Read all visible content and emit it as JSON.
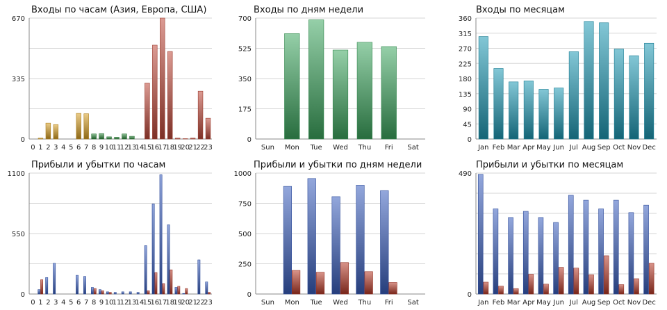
{
  "chart_data": [
    {
      "type": "bar",
      "title": "Входы по часам (Азия, Европа, США)",
      "categories": [
        "0",
        "1",
        "2",
        "3",
        "4",
        "5",
        "6",
        "7",
        "8",
        "9",
        "10",
        "11",
        "12",
        "13",
        "14",
        "15",
        "16",
        "17",
        "18",
        "19",
        "20",
        "21",
        "22",
        "23"
      ],
      "series": [
        {
          "values": [
            0,
            5,
            88,
            80,
            0,
            0,
            142,
            140,
            28,
            30,
            12,
            10,
            28,
            15,
            0,
            310,
            520,
            670,
            485,
            5,
            2,
            5,
            265,
            115
          ]
        }
      ],
      "bar_colors": [
        "#d9a024",
        "#d9a024",
        "#d9a024",
        "#d9a024",
        "#d9a024",
        "#d9a024",
        "#d9a024",
        "#d9a024",
        "#2e8b3c",
        "#2e8b3c",
        "#2e8b3c",
        "#2e8b3c",
        "#2e8b3c",
        "#2e8b3c",
        "#c04a3a",
        "#c04a3a",
        "#c04a3a",
        "#c04a3a",
        "#c04a3a",
        "#c04a3a",
        "#c04a3a",
        "#c04a3a",
        "#c04a3a",
        "#c04a3a"
      ],
      "ylim": [
        0,
        670
      ],
      "yticks": [
        0,
        335,
        670
      ],
      "grid": true
    },
    {
      "type": "bar",
      "title": "Входы по дням недели",
      "categories": [
        "Sun",
        "Mon",
        "Tue",
        "Wed",
        "Thu",
        "Fri",
        "Sat"
      ],
      "series": [
        {
          "values": [
            0,
            610,
            690,
            515,
            560,
            535,
            0
          ],
          "color": "#3ea860"
        }
      ],
      "ylim": [
        0,
        700
      ],
      "yticks": [
        0,
        175,
        350,
        525,
        700
      ],
      "grid": true
    },
    {
      "type": "bar",
      "title": "Входы по месяцам",
      "categories": [
        "Jan",
        "Feb",
        "Mar",
        "Apr",
        "May",
        "Jun",
        "Jul",
        "Aug",
        "Sep",
        "Oct",
        "Nov",
        "Dec"
      ],
      "series": [
        {
          "values": [
            305,
            210,
            170,
            173,
            148,
            152,
            260,
            350,
            346,
            268,
            248,
            285
          ],
          "color": "#1e9ab5"
        }
      ],
      "ylim": [
        0,
        360
      ],
      "yticks": [
        0,
        45,
        90,
        135,
        180,
        225,
        270,
        315,
        360
      ],
      "grid": true
    },
    {
      "type": "bar",
      "title": "Прибыли и убытки по часам",
      "categories": [
        "0",
        "1",
        "2",
        "3",
        "4",
        "5",
        "6",
        "7",
        "8",
        "9",
        "10",
        "11",
        "12",
        "13",
        "14",
        "15",
        "16",
        "17",
        "18",
        "19",
        "20",
        "21",
        "22",
        "23"
      ],
      "series": [
        {
          "values": [
            0,
            40,
            150,
            280,
            0,
            0,
            170,
            160,
            60,
            40,
            20,
            15,
            20,
            20,
            15,
            440,
            820,
            1085,
            630,
            60,
            5,
            0,
            310,
            110
          ],
          "color": "#3a5fbf"
        },
        {
          "values": [
            0,
            130,
            0,
            0,
            0,
            0,
            0,
            0,
            50,
            30,
            15,
            0,
            0,
            0,
            0,
            30,
            195,
            95,
            220,
            70,
            50,
            0,
            0,
            15
          ],
          "color": "#b83a28"
        }
      ],
      "ylim": [
        0,
        1100
      ],
      "yticks": [
        0,
        550,
        1100
      ],
      "grid": true
    },
    {
      "type": "bar",
      "title": "Прибыли и убытки по дням недели",
      "categories": [
        "Sun",
        "Mon",
        "Tue",
        "Wed",
        "Thu",
        "Fri",
        "Sat"
      ],
      "series": [
        {
          "values": [
            0,
            890,
            955,
            805,
            900,
            855,
            0
          ],
          "color": "#3a5fbf"
        },
        {
          "values": [
            0,
            195,
            180,
            260,
            185,
            95,
            0
          ],
          "color": "#b83a28"
        }
      ],
      "ylim": [
        0,
        1000
      ],
      "yticks": [
        0,
        250,
        500,
        750,
        1000
      ],
      "grid": true
    },
    {
      "type": "bar",
      "title": "Прибыли и убытки по месяцам",
      "categories": [
        "Jan",
        "Feb",
        "Mar",
        "Apr",
        "May",
        "Jun",
        "Jul",
        "Aug",
        "Sep",
        "Oct",
        "Nov",
        "Dec"
      ],
      "series": [
        {
          "values": [
            485,
            345,
            310,
            335,
            310,
            290,
            400,
            380,
            345,
            380,
            330,
            360
          ],
          "color": "#3a5fbf"
        },
        {
          "values": [
            48,
            32,
            22,
            80,
            40,
            108,
            105,
            78,
            155,
            38,
            62,
            125
          ],
          "color": "#b83a28"
        }
      ],
      "ylim": [
        0,
        490
      ],
      "yticks": [
        0,
        490
      ],
      "grid": true
    }
  ]
}
